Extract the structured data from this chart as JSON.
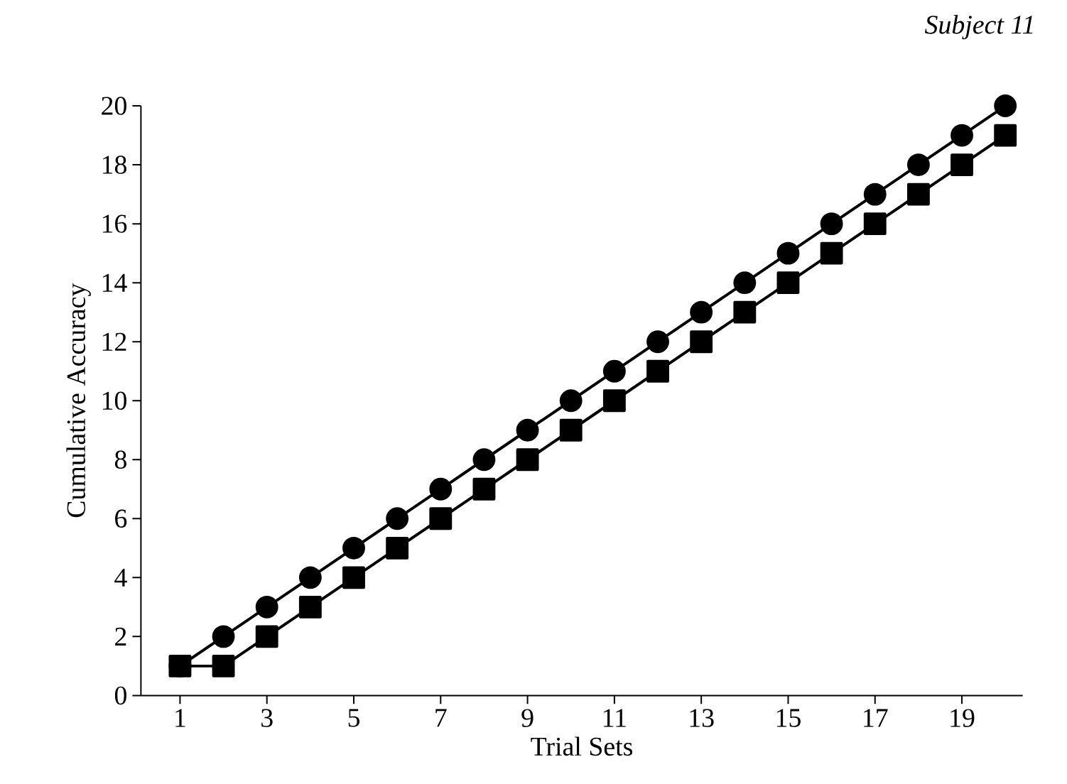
{
  "chart_data": {
    "type": "line",
    "title": "Subject 11",
    "xlabel": "Trial Sets",
    "ylabel": "Cumulative Accuracy",
    "x": [
      1,
      2,
      3,
      4,
      5,
      6,
      7,
      8,
      9,
      10,
      11,
      12,
      13,
      14,
      15,
      16,
      17,
      18,
      19,
      20
    ],
    "series": [
      {
        "color": "#000000",
        "marker": "circle",
        "values": [
          1,
          2,
          3,
          4,
          5,
          6,
          7,
          8,
          9,
          10,
          11,
          12,
          13,
          14,
          15,
          16,
          17,
          18,
          19,
          20
        ]
      },
      {
        "color": "#000000",
        "marker": "square",
        "values": [
          1,
          1,
          2,
          3,
          4,
          5,
          6,
          7,
          8,
          9,
          10,
          11,
          12,
          13,
          14,
          15,
          16,
          17,
          18,
          19
        ]
      }
    ],
    "xlim": [
      0.1,
      20.4
    ],
    "xticks": [
      1,
      3,
      5,
      7,
      9,
      11,
      13,
      15,
      17,
      19
    ],
    "ylim": [
      0,
      20
    ],
    "yticks": [
      0,
      2,
      4,
      6,
      8,
      10,
      12,
      14,
      16,
      18,
      20
    ],
    "line_style": "solid"
  }
}
